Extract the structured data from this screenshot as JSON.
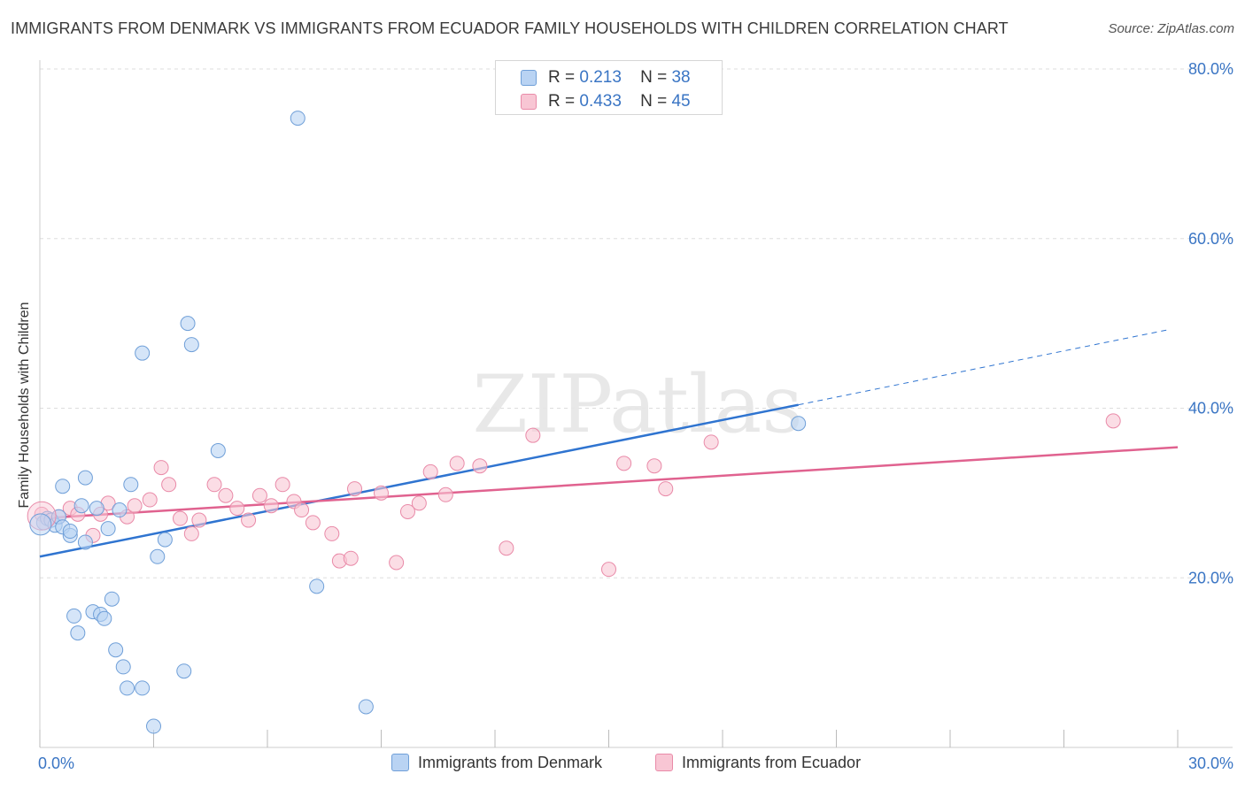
{
  "title": "IMMIGRANTS FROM DENMARK VS IMMIGRANTS FROM ECUADOR FAMILY HOUSEHOLDS WITH CHILDREN CORRELATION CHART",
  "source": "Source: ZipAtlas.com",
  "watermark": "ZIPatlas",
  "legend_top": [
    {
      "r_label": "R =",
      "r_value": "0.213",
      "n_label": "N =",
      "n_value": "38"
    },
    {
      "r_label": "R =",
      "r_value": "0.433",
      "n_label": "N =",
      "n_value": "45"
    }
  ],
  "legend_bottom": [
    "Immigrants from Denmark",
    "Immigrants from Ecuador"
  ],
  "colors": {
    "denmark_fill": "#b9d3f3",
    "denmark_stroke": "#6f9fd8",
    "denmark_line": "#2f74d0",
    "ecuador_fill": "#f8c6d4",
    "ecuador_stroke": "#e98aa8",
    "ecuador_line": "#e0628f",
    "axis_label": "#3a75c4",
    "grid": "#dddddd"
  },
  "chart_data": {
    "type": "scatter",
    "ylabel": "Family Households with Children",
    "xlim": [
      0,
      30
    ],
    "ylim": [
      0,
      80
    ],
    "x_tick_labels": [
      "0.0%",
      "30.0%"
    ],
    "y_tick_labels": [
      "20.0%",
      "40.0%",
      "60.0%",
      "80.0%"
    ],
    "y_ticks": [
      20,
      40,
      60,
      80
    ],
    "series": [
      {
        "name": "Immigrants from Denmark",
        "r": 0.213,
        "n": 38,
        "trend": {
          "x_start": 0,
          "y_start": 22.5,
          "x_end": 20,
          "y_end": 40.4,
          "dash_to_x": 29.8,
          "dash_to_y": 49.3
        },
        "points": [
          [
            0.1,
            26.5
          ],
          [
            0.2,
            27.0
          ],
          [
            0.3,
            26.8
          ],
          [
            0.4,
            26.2
          ],
          [
            0.5,
            27.2
          ],
          [
            0.6,
            26.0
          ],
          [
            0.8,
            25.0
          ],
          [
            0.8,
            25.5
          ],
          [
            1.2,
            24.2
          ],
          [
            1.1,
            28.5
          ],
          [
            1.2,
            31.8
          ],
          [
            0.6,
            30.8
          ],
          [
            1.5,
            28.2
          ],
          [
            1.8,
            25.8
          ],
          [
            2.1,
            28.0
          ],
          [
            2.4,
            31.0
          ],
          [
            1.9,
            17.5
          ],
          [
            1.4,
            16.0
          ],
          [
            0.9,
            15.5
          ],
          [
            1.6,
            15.7
          ],
          [
            1.7,
            15.2
          ],
          [
            1.0,
            13.5
          ],
          [
            2.0,
            11.5
          ],
          [
            2.2,
            9.5
          ],
          [
            2.3,
            7.0
          ],
          [
            2.7,
            7.0
          ],
          [
            3.0,
            2.5
          ],
          [
            3.3,
            24.5
          ],
          [
            3.1,
            22.5
          ],
          [
            2.7,
            46.5
          ],
          [
            3.9,
            50.0
          ],
          [
            4.0,
            47.5
          ],
          [
            4.7,
            35.0
          ],
          [
            3.8,
            9.0
          ],
          [
            7.3,
            19.0
          ],
          [
            8.6,
            4.8
          ],
          [
            6.8,
            74.2
          ],
          [
            20.0,
            38.2
          ]
        ]
      },
      {
        "name": "Immigrants from Ecuador",
        "r": 0.433,
        "n": 45,
        "trend": {
          "x_start": 0,
          "y_start": 27.0,
          "x_end": 30,
          "y_end": 35.4
        },
        "points": [
          [
            0.05,
            27.5
          ],
          [
            0.5,
            27.2
          ],
          [
            0.8,
            28.2
          ],
          [
            1.0,
            27.5
          ],
          [
            1.4,
            25.0
          ],
          [
            1.6,
            27.5
          ],
          [
            1.8,
            28.8
          ],
          [
            2.3,
            27.2
          ],
          [
            2.5,
            28.5
          ],
          [
            2.9,
            29.2
          ],
          [
            3.2,
            33.0
          ],
          [
            3.4,
            31.0
          ],
          [
            3.7,
            27.0
          ],
          [
            4.0,
            25.2
          ],
          [
            4.2,
            26.8
          ],
          [
            4.6,
            31.0
          ],
          [
            4.9,
            29.7
          ],
          [
            5.2,
            28.2
          ],
          [
            5.5,
            26.8
          ],
          [
            5.8,
            29.7
          ],
          [
            6.1,
            28.5
          ],
          [
            6.4,
            31.0
          ],
          [
            6.7,
            29.0
          ],
          [
            6.9,
            28.0
          ],
          [
            7.2,
            26.5
          ],
          [
            7.7,
            25.2
          ],
          [
            7.9,
            22.0
          ],
          [
            8.2,
            22.3
          ],
          [
            8.3,
            30.5
          ],
          [
            9.0,
            30.0
          ],
          [
            9.4,
            21.8
          ],
          [
            9.7,
            27.8
          ],
          [
            10.0,
            28.8
          ],
          [
            10.3,
            32.5
          ],
          [
            10.7,
            29.8
          ],
          [
            11.0,
            33.5
          ],
          [
            11.6,
            33.2
          ],
          [
            12.3,
            23.5
          ],
          [
            13.0,
            36.8
          ],
          [
            15.0,
            21.0
          ],
          [
            15.4,
            33.5
          ],
          [
            16.2,
            33.2
          ],
          [
            16.5,
            30.5
          ],
          [
            17.7,
            36.0
          ],
          [
            28.3,
            38.5
          ]
        ]
      }
    ]
  }
}
